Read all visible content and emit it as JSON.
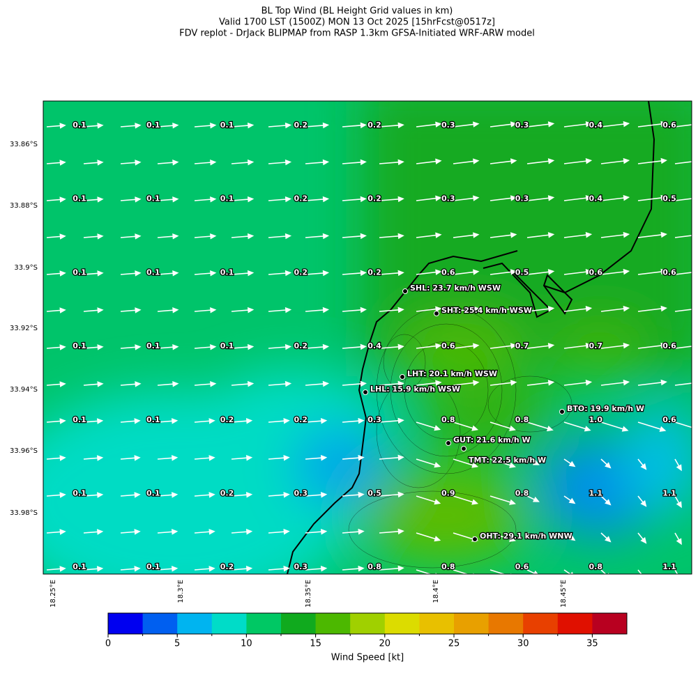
{
  "title": {
    "lines": [
      "BL Top Wind (BL Height Grid values in km)",
      "Valid 1700 LST (1500Z) MON 13 Oct 2025 [15hrFcst@0517z]",
      "FDV replot - DrJack BLIPMAP from RASP 1.3km GFSA-Initiated WRF-ARW model"
    ]
  },
  "lat_ticks": [
    "33.86°S",
    "33.88°S",
    "33.9°S",
    "33.92°S",
    "33.94°S",
    "33.96°S",
    "33.98°S"
  ],
  "lon_ticks": [
    "18.25°E",
    "18.3°E",
    "18.35°E",
    "18.4°E",
    "18.45°E"
  ],
  "grid_values": [
    [
      "0.1",
      "0.1",
      "0.1",
      "0.2",
      "0.2",
      "0.3",
      "0.3",
      "0.4",
      "0.6"
    ],
    [
      "0.1",
      "0.1",
      "0.1",
      "0.2",
      "0.2",
      "0.3",
      "0.3",
      "0.4",
      "0.5"
    ],
    [
      "0.1",
      "0.1",
      "0.1",
      "0.2",
      "0.2",
      "0.6",
      "0.5",
      "0.6",
      "0.6"
    ],
    [
      "0.1",
      "0.1",
      "0.1",
      "0.2",
      "0.4",
      "0.6",
      "0.7",
      "0.7",
      "0.6"
    ],
    [
      "0.1",
      "0.1",
      "0.2",
      "0.2",
      "0.3",
      "0.8",
      "0.8",
      "1.0",
      "0.6"
    ],
    [
      "0.1",
      "0.1",
      "0.2",
      "0.3",
      "0.5",
      "0.9",
      "0.8",
      "1.1",
      "1.1"
    ],
    [
      "0.1",
      "0.1",
      "0.2",
      "0.3",
      "0.8",
      "0.8",
      "0.6",
      "0.8",
      "1.1"
    ]
  ],
  "stations": [
    "SHL: 23.7 km/h WSW",
    "SHT: 25.4 km/h WSW",
    "LHT: 20.1 km/h WSW",
    "LHL: 15.9 km/h WSW",
    "BTO: 19.9 km/h W",
    "GUT: 21.6 km/h W",
    "TMT: 22.5 km/h W",
    "OHT: 29.1 km/h WNW"
  ],
  "colorbar": {
    "label": "Wind Speed [kt]",
    "lim": [
      0,
      37.5
    ],
    "ticks": [
      0,
      5,
      10,
      15,
      20,
      25,
      30,
      35
    ],
    "colors": [
      "#0000f0",
      "#005ff0",
      "#00b4f0",
      "#00dcc8",
      "#00c864",
      "#10aa1e",
      "#4cb800",
      "#a0d000",
      "#dcdc00",
      "#e8c000",
      "#e8a000",
      "#e87800",
      "#e84000",
      "#e01000",
      "#b80020"
    ]
  }
}
